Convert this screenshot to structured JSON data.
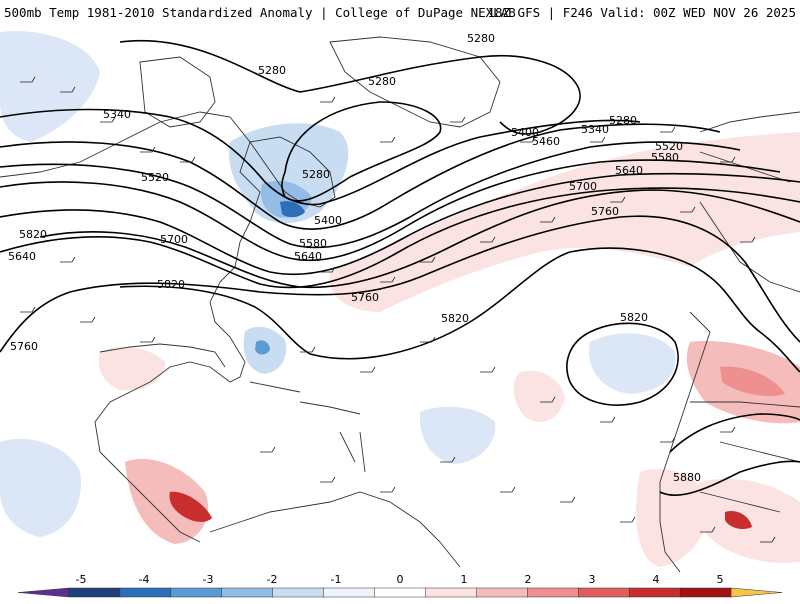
{
  "header": {
    "left_title": "500mb Temp 1981-2010 Standardized Anomaly | College of DuPage NEXLAB",
    "right_title": "18Z GFS | F246 Valid: 00Z WED NOV 26 2025"
  },
  "contour_labels": [
    "5280",
    "5280",
    "5280",
    "5280",
    "5280",
    "5340",
    "5340",
    "5400",
    "5400",
    "5460",
    "5520",
    "5520",
    "5580",
    "5580",
    "5640",
    "5640",
    "5640",
    "5700",
    "5700",
    "5760",
    "5760",
    "5760",
    "5820",
    "5820",
    "5820",
    "5820",
    "5880"
  ],
  "colorbar": {
    "tick_labels": [
      "-5",
      "-4",
      "-3",
      "-2",
      "-1",
      "0",
      "1",
      "2",
      "3",
      "4",
      "5"
    ],
    "colors": [
      "#5b2f8f",
      "#1f3f7f",
      "#2c6fb8",
      "#5a9bd6",
      "#93bde6",
      "#c9ddf2",
      "#eef3fa",
      "#ffffff",
      "#fbe3e3",
      "#f5bcbc",
      "#ee9090",
      "#e05e5e",
      "#c92e2e",
      "#a21212",
      "#f3c64a"
    ]
  }
}
